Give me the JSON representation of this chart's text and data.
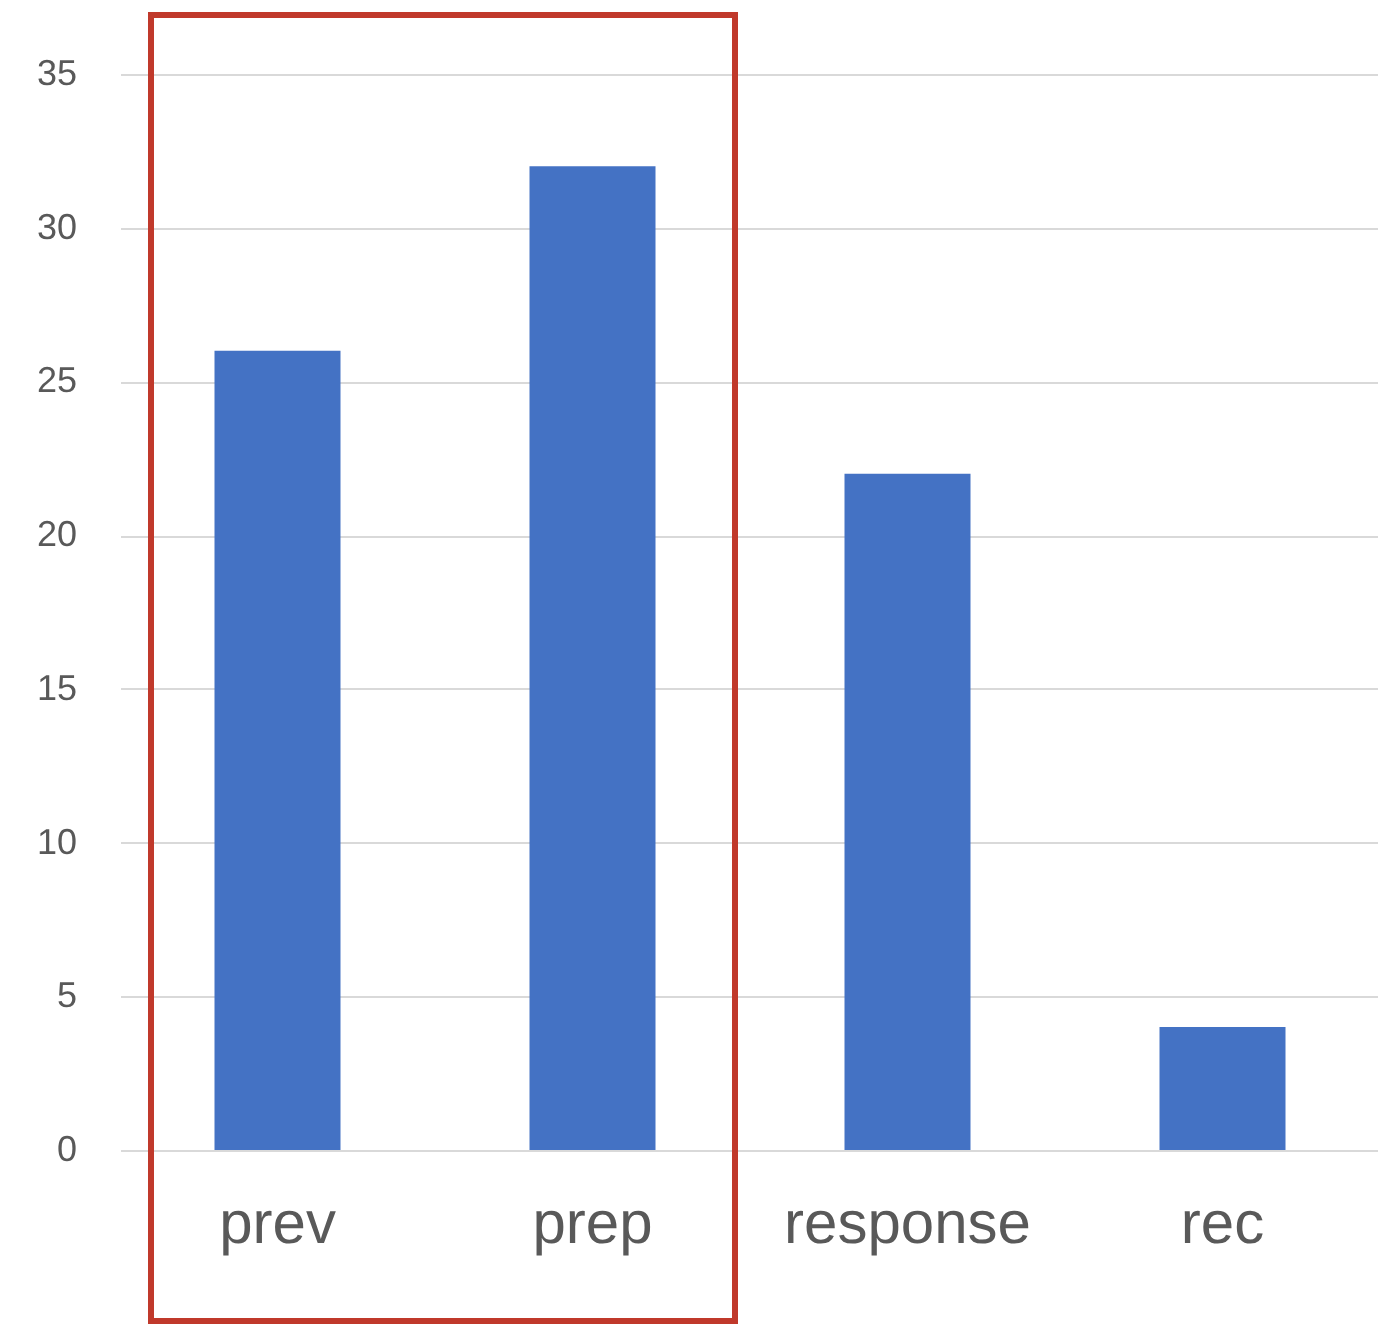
{
  "chart_data": {
    "type": "bar",
    "categories": [
      "prev",
      "prep",
      "response",
      "rec"
    ],
    "values": [
      26,
      32,
      22,
      4
    ],
    "color": "#4472c4",
    "ylim": [
      0,
      35
    ],
    "yticks": [
      0,
      5,
      10,
      15,
      20,
      25,
      30,
      35
    ],
    "grid": "y"
  }
}
